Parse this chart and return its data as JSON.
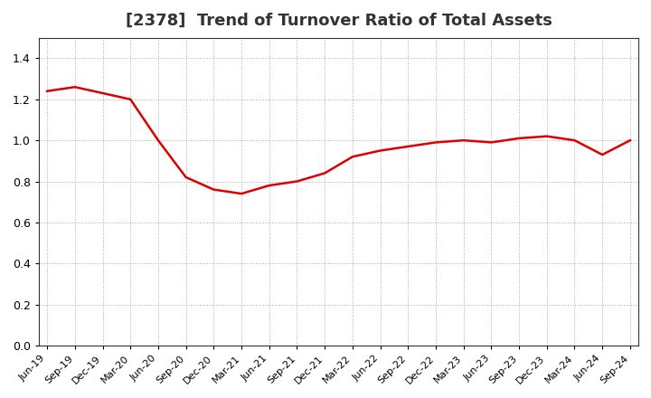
{
  "title": "[2378]  Trend of Turnover Ratio of Total Assets",
  "title_fontsize": 13,
  "title_color": "#333333",
  "line_color": "#dd0000",
  "line_width": 1.8,
  "background_color": "#ffffff",
  "grid_color": "#aaaaaa",
  "ylim": [
    0.0,
    1.5
  ],
  "yticks": [
    0.0,
    0.2,
    0.4,
    0.6,
    0.8,
    1.0,
    1.2,
    1.4
  ],
  "x_labels": [
    "Jun-19",
    "Sep-19",
    "Dec-19",
    "Mar-20",
    "Jun-20",
    "Sep-20",
    "Dec-20",
    "Mar-21",
    "Jun-21",
    "Sep-21",
    "Dec-21",
    "Mar-22",
    "Jun-22",
    "Sep-22",
    "Dec-22",
    "Mar-23",
    "Jun-23",
    "Sep-23",
    "Dec-23",
    "Mar-24",
    "Jun-24",
    "Sep-24"
  ],
  "values": [
    1.24,
    1.26,
    1.23,
    1.2,
    1.0,
    0.82,
    0.76,
    0.74,
    0.78,
    0.8,
    0.84,
    0.92,
    0.95,
    0.97,
    0.99,
    1.0,
    0.99,
    1.01,
    1.02,
    1.0,
    0.93,
    1.0
  ]
}
